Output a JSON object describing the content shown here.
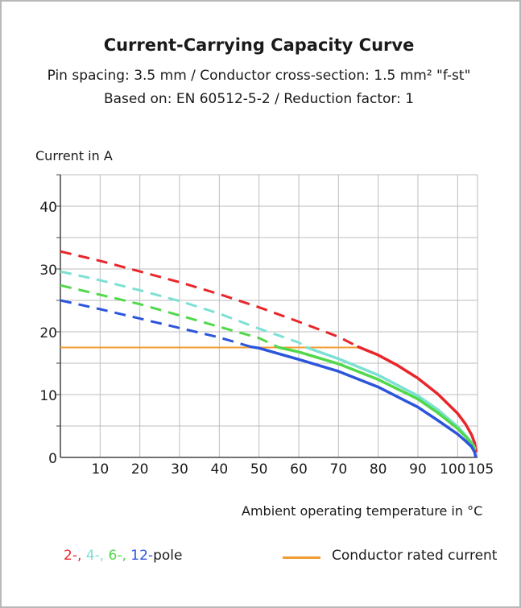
{
  "chart_data": {
    "type": "line",
    "title": "Current-Carrying Capacity Curve",
    "subtitle_lines": [
      "Pin spacing: 3.5 mm / Conductor cross-section: 1.5 mm² \"f-st\"",
      "Based on: EN 60512-5-2 / Reduction factor: 1"
    ],
    "ylabel": "Current in A",
    "xlabel": "Ambient operating temperature in °C",
    "xlim": [
      0,
      105
    ],
    "ylim": [
      0,
      45
    ],
    "x_ticks": [
      10,
      20,
      30,
      40,
      50,
      60,
      70,
      80,
      90,
      100,
      105
    ],
    "y_ticks": [
      0,
      10,
      20,
      30,
      40
    ],
    "grid": true,
    "series": [
      {
        "name": "2-",
        "color": "#e8262b",
        "dashed_points": [
          [
            0,
            32.8
          ],
          [
            10,
            31.3
          ],
          [
            20,
            29.6
          ],
          [
            30,
            27.9
          ],
          [
            40,
            26.0
          ],
          [
            50,
            23.9
          ],
          [
            60,
            21.6
          ],
          [
            70,
            19.2
          ],
          [
            75,
            17.6
          ]
        ],
        "solid_points": [
          [
            75,
            17.6
          ],
          [
            80,
            16.3
          ],
          [
            85,
            14.6
          ],
          [
            90,
            12.6
          ],
          [
            95,
            10.1
          ],
          [
            100,
            7.0
          ],
          [
            102,
            5.3
          ],
          [
            103.5,
            3.6
          ],
          [
            104.3,
            2.3
          ],
          [
            104.6,
            1.0
          ]
        ]
      },
      {
        "name": "4-",
        "color": "#7de0d4",
        "dashed_points": [
          [
            0,
            29.6
          ],
          [
            10,
            28.2
          ],
          [
            20,
            26.6
          ],
          [
            30,
            24.9
          ],
          [
            40,
            22.9
          ],
          [
            50,
            20.5
          ],
          [
            60,
            18.3
          ],
          [
            62,
            17.5
          ]
        ],
        "solid_points": [
          [
            62,
            17.5
          ],
          [
            70,
            15.7
          ],
          [
            80,
            13.1
          ],
          [
            90,
            9.8
          ],
          [
            95,
            7.6
          ],
          [
            100,
            4.9
          ],
          [
            102,
            3.5
          ],
          [
            103.5,
            2.4
          ],
          [
            104.3,
            1.5
          ]
        ]
      },
      {
        "name": "6-",
        "color": "#51d84a",
        "dashed_points": [
          [
            0,
            27.4
          ],
          [
            10,
            25.9
          ],
          [
            20,
            24.4
          ],
          [
            30,
            22.6
          ],
          [
            40,
            20.8
          ],
          [
            50,
            19.0
          ],
          [
            55,
            17.5
          ]
        ],
        "solid_points": [
          [
            55,
            17.5
          ],
          [
            60,
            16.8
          ],
          [
            70,
            14.9
          ],
          [
            80,
            12.4
          ],
          [
            90,
            9.3
          ],
          [
            95,
            7.1
          ],
          [
            100,
            4.6
          ],
          [
            102,
            3.3
          ],
          [
            103.5,
            2.2
          ],
          [
            104.3,
            1.3
          ]
        ]
      },
      {
        "name": "12-",
        "color": "#2c55dc",
        "dashed_points": [
          [
            0,
            25.0
          ],
          [
            10,
            23.6
          ],
          [
            20,
            22.1
          ],
          [
            30,
            20.6
          ],
          [
            40,
            19.1
          ],
          [
            48,
            17.6
          ]
        ],
        "solid_points": [
          [
            48,
            17.6
          ],
          [
            50,
            17.4
          ],
          [
            60,
            15.6
          ],
          [
            70,
            13.7
          ],
          [
            80,
            11.2
          ],
          [
            90,
            8.0
          ],
          [
            95,
            5.9
          ],
          [
            100,
            3.7
          ],
          [
            102,
            2.6
          ],
          [
            103.5,
            1.7
          ],
          [
            104.3,
            0.8
          ],
          [
            104.5,
            0.2
          ]
        ]
      }
    ],
    "rated_current": {
      "name": "Conductor rated current",
      "value": 17.5,
      "x_range": [
        0,
        75
      ],
      "color": "#f39c32"
    },
    "legend": {
      "placement": "bottom",
      "pole_suffix": "pole"
    }
  }
}
